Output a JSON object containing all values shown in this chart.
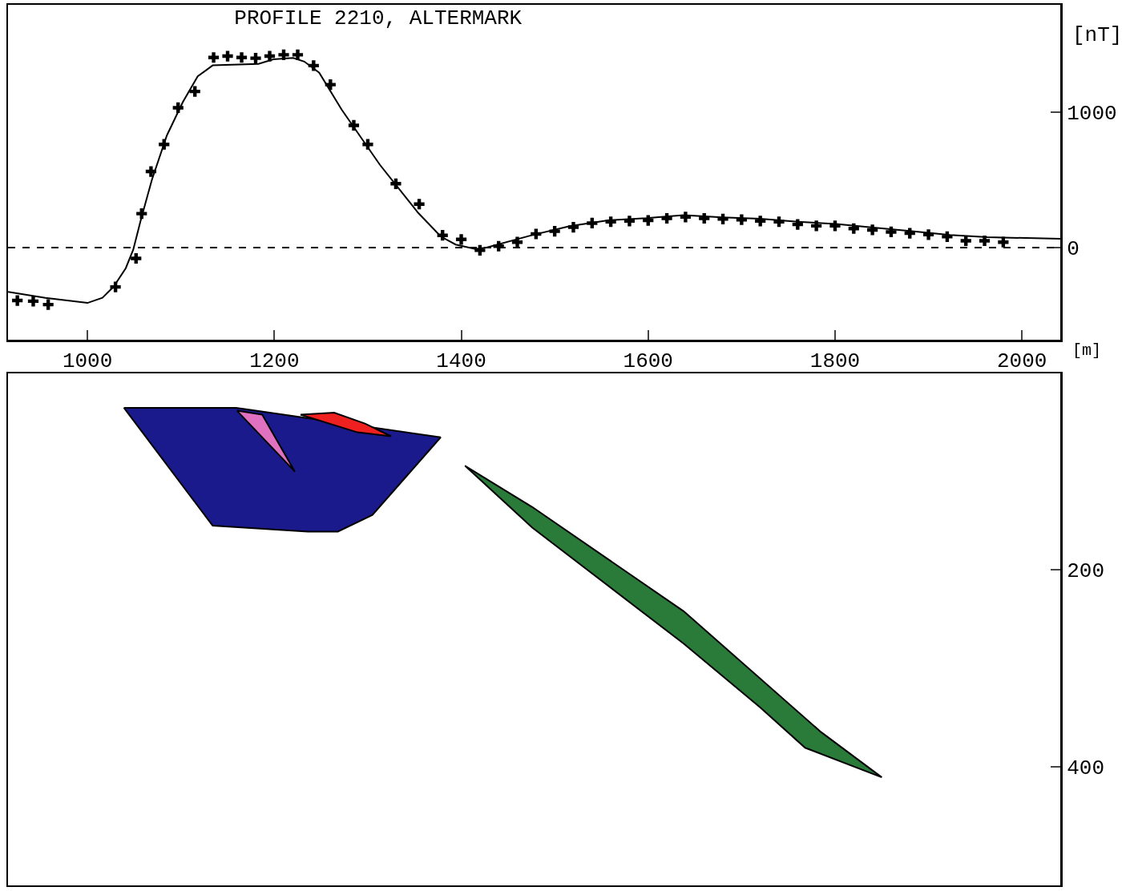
{
  "chart_data": [
    {
      "type": "line",
      "title": "PROFILE 2210, ALTERMARK",
      "xlabel": "[m]",
      "ylabel": "[nT]",
      "xlim": [
        915,
        2041
      ],
      "xticks": [
        1000,
        1200,
        1400,
        1600,
        1800,
        2000
      ],
      "ylim": [
        -679,
        1788
      ],
      "yticks": [
        0,
        1000
      ],
      "grid": false,
      "legend": false,
      "ref_lines": [
        {
          "axis": "y",
          "value": 0,
          "line_style": "dashed",
          "color": "#000000"
        }
      ],
      "series": [
        {
          "color": "#000000",
          "marker": "none",
          "x": [
            915,
            955,
            1000,
            1016,
            1028,
            1041,
            1049,
            1057,
            1069,
            1085,
            1102,
            1118,
            1134,
            1183,
            1199,
            1220,
            1232,
            1248,
            1272,
            1313,
            1354,
            1378,
            1394,
            1415,
            1427,
            1476,
            1516,
            1557,
            1598,
            1638,
            1679,
            1720,
            1760,
            1801,
            1841,
            1882,
            1923,
            1963,
            2041
          ],
          "values": [
            -326,
            -370,
            -408,
            -370,
            -288,
            -152,
            -16,
            201,
            500,
            826,
            1071,
            1261,
            1342,
            1353,
            1386,
            1397,
            1370,
            1288,
            1016,
            609,
            255,
            82,
            22,
            -11,
            0,
            92,
            158,
            201,
            217,
            239,
            223,
            212,
            190,
            174,
            147,
            120,
            92,
            76,
            65
          ]
        },
        {
          "type": "scatter",
          "color": "#000000",
          "marker": "cross",
          "x": [
            925,
            942,
            958,
            1030,
            1052,
            1058,
            1068,
            1082,
            1097,
            1115,
            1135,
            1150,
            1165,
            1180,
            1195,
            1210,
            1225,
            1242,
            1260,
            1285,
            1300,
            1330,
            1355,
            1380,
            1400,
            1420,
            1440,
            1460,
            1480,
            1500,
            1520,
            1540,
            1560,
            1580,
            1600,
            1620,
            1640,
            1660,
            1680,
            1700,
            1720,
            1740,
            1760,
            1780,
            1800,
            1820,
            1840,
            1860,
            1880,
            1900,
            1920,
            1940,
            1960,
            1980
          ],
          "values": [
            -390,
            -395,
            -420,
            -290,
            -80,
            250,
            560,
            760,
            1030,
            1150,
            1400,
            1410,
            1400,
            1395,
            1410,
            1420,
            1420,
            1340,
            1200,
            900,
            760,
            470,
            320,
            90,
            60,
            -20,
            10,
            40,
            100,
            120,
            150,
            180,
            190,
            195,
            200,
            215,
            225,
            215,
            210,
            205,
            195,
            190,
            170,
            160,
            160,
            140,
            130,
            115,
            105,
            95,
            80,
            50,
            50,
            40
          ]
        }
      ]
    },
    {
      "type": "area",
      "xlim": [
        915,
        2041
      ],
      "ylim": [
        521,
        0
      ],
      "yticks": [
        200,
        400
      ],
      "tick_labels": "y",
      "grid": false,
      "legend": false,
      "series": [
        {
          "color": "#1a1a8c",
          "x": [
            1039,
            1159,
            1378,
            1305,
            1268,
            1236,
            1134,
            1039
          ],
          "values": [
            35,
            35,
            65,
            144,
            161,
            161,
            155,
            35
          ]
        },
        {
          "color": "#e070c0",
          "x": [
            1160,
            1187,
            1222,
            1160
          ],
          "values": [
            38,
            42,
            100,
            38
          ]
        },
        {
          "color": "#ee2020",
          "x": [
            1228,
            1264,
            1297,
            1325,
            1289,
            1228
          ],
          "values": [
            42,
            40,
            51,
            64,
            60,
            42
          ]
        },
        {
          "color": "#2a7a3a",
          "x": [
            1404,
            1476,
            1638,
            1785,
            1850,
            1768,
            1720,
            1638,
            1476,
            1404
          ],
          "values": [
            94,
            136,
            242,
            365,
            411,
            381,
            340,
            275,
            157,
            94
          ]
        }
      ]
    }
  ]
}
